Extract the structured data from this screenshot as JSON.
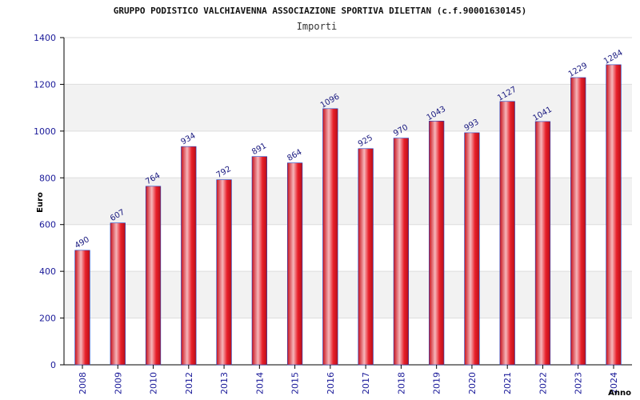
{
  "chart_data": {
    "type": "bar",
    "title": "GRUPPO PODISTICO VALCHIAVENNA ASSOCIAZIONE SPORTIVA DILETTAN (c.f.90001630145)",
    "subtitle": "Importi",
    "xlabel": "Anno",
    "ylabel": "Euro",
    "ylim": [
      0,
      1400
    ],
    "yticks": [
      0,
      200,
      400,
      600,
      800,
      1000,
      1200,
      1400
    ],
    "categories": [
      "2008",
      "2009",
      "2010",
      "2012",
      "2013",
      "2014",
      "2015",
      "2016",
      "2017",
      "2018",
      "2019",
      "2020",
      "2021",
      "2022",
      "2023",
      "2024"
    ],
    "values": [
      490,
      607,
      764,
      934,
      792,
      891,
      864,
      1096,
      925,
      970,
      1043,
      993,
      1127,
      1041,
      1229,
      1284
    ],
    "grid": true,
    "colors": {
      "bar": "#e8202a",
      "bar_highlight": "#f4b8bc",
      "bar_edge": "#2040c0",
      "band": "#f2f2f2",
      "grid": "#dddddd",
      "tick_text": "#1a1a99"
    }
  }
}
